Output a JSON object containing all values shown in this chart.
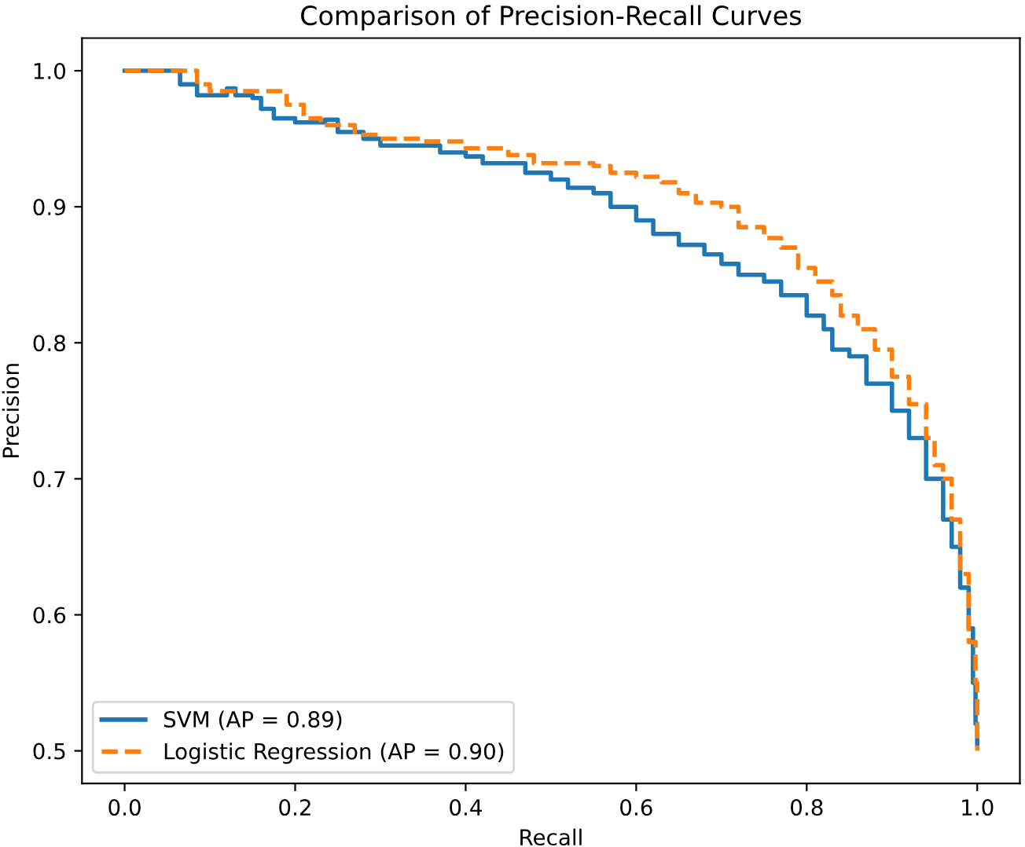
{
  "chart_data": {
    "type": "step",
    "title": "Comparison of Precision-Recall Curves",
    "xlabel": "Recall",
    "ylabel": "Precision",
    "xlim": [
      -0.05,
      1.05
    ],
    "ylim": [
      0.476,
      1.024
    ],
    "xticks": [
      {
        "value": 0,
        "label": "0.0"
      },
      0.2,
      0.4,
      0.6,
      0.8,
      {
        "value": 1,
        "label": "1.0"
      }
    ],
    "yticks": [
      0.5,
      0.6,
      0.7,
      0.8,
      0.9,
      {
        "value": 1,
        "label": "1.0"
      }
    ],
    "grid": false,
    "legend": "bottom left",
    "series": [
      {
        "name": "SVM (AP = 0.89)",
        "color": "#1f77b4",
        "line_style": "solid",
        "x": [
          0,
          0.065,
          0.085,
          0.12,
          0.13,
          0.15,
          0.16,
          0.175,
          0.2,
          0.22,
          0.235,
          0.25,
          0.28,
          0.3,
          0.35,
          0.37,
          0.4,
          0.42,
          0.45,
          0.47,
          0.5,
          0.52,
          0.55,
          0.57,
          0.6,
          0.62,
          0.65,
          0.68,
          0.7,
          0.72,
          0.75,
          0.77,
          0.8,
          0.82,
          0.83,
          0.85,
          0.87,
          0.9,
          0.92,
          0.94,
          0.96,
          0.97,
          0.98,
          0.99,
          0.995,
          0.998,
          1.0
        ],
        "values": [
          1.0,
          0.99,
          0.982,
          0.987,
          0.982,
          0.98,
          0.972,
          0.965,
          0.962,
          0.962,
          0.964,
          0.955,
          0.95,
          0.945,
          0.945,
          0.94,
          0.937,
          0.932,
          0.932,
          0.925,
          0.92,
          0.914,
          0.91,
          0.9,
          0.89,
          0.88,
          0.872,
          0.865,
          0.858,
          0.85,
          0.845,
          0.835,
          0.82,
          0.81,
          0.795,
          0.79,
          0.77,
          0.75,
          0.73,
          0.7,
          0.67,
          0.65,
          0.62,
          0.59,
          0.55,
          0.52,
          0.505
        ]
      },
      {
        "name": "Logistic Regression (AP = 0.90)",
        "color": "#ff7f0e",
        "line_style": "dashed",
        "x": [
          0,
          0.085,
          0.1,
          0.17,
          0.19,
          0.21,
          0.23,
          0.27,
          0.3,
          0.35,
          0.4,
          0.45,
          0.48,
          0.55,
          0.57,
          0.6,
          0.63,
          0.65,
          0.67,
          0.7,
          0.72,
          0.75,
          0.77,
          0.79,
          0.81,
          0.83,
          0.84,
          0.86,
          0.88,
          0.9,
          0.92,
          0.94,
          0.95,
          0.96,
          0.97,
          0.98,
          0.99,
          0.998,
          1.0
        ],
        "values": [
          1.0,
          0.99,
          0.985,
          0.985,
          0.975,
          0.965,
          0.96,
          0.953,
          0.95,
          0.948,
          0.943,
          0.938,
          0.932,
          0.93,
          0.925,
          0.922,
          0.918,
          0.91,
          0.903,
          0.9,
          0.885,
          0.877,
          0.87,
          0.855,
          0.845,
          0.835,
          0.82,
          0.81,
          0.795,
          0.775,
          0.755,
          0.73,
          0.71,
          0.7,
          0.67,
          0.63,
          0.58,
          0.55,
          0.5
        ]
      }
    ]
  }
}
